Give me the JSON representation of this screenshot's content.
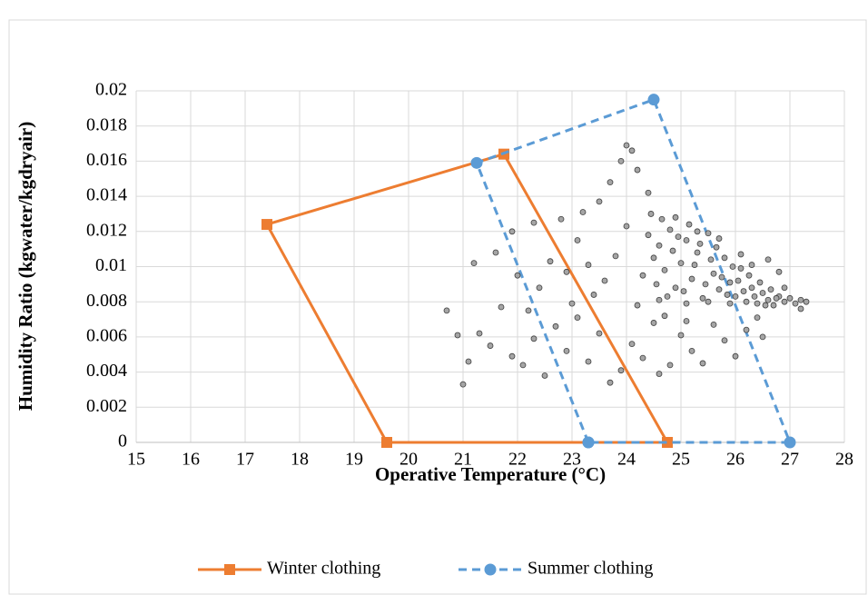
{
  "chart_data": {
    "type": "scatter",
    "xlabel": "Operative Temperature (°C)",
    "ylabel": "Humidity Ratio (kgwater/kgdryair)",
    "xlim": [
      15,
      28
    ],
    "xticks": [
      15,
      16,
      17,
      18,
      19,
      20,
      21,
      22,
      23,
      24,
      25,
      26,
      27,
      28
    ],
    "ylim": [
      0,
      0.02
    ],
    "yticks": [
      0,
      0.002,
      0.004,
      0.006,
      0.008,
      0.01,
      0.012,
      0.014,
      0.016,
      0.018,
      0.02
    ],
    "grid": true,
    "legend": "bottom",
    "series": [
      {
        "name": "Winter clothing",
        "color": "#ed7d31",
        "marker": "square",
        "dashed": false,
        "x": [
          19.6,
          17.4,
          21.75,
          24.75,
          19.6
        ],
        "y": [
          0,
          0.0124,
          0.0164,
          0,
          0
        ]
      },
      {
        "name": "Summer clothing",
        "color": "#5b9bd5",
        "marker": "circle",
        "dashed": true,
        "x": [
          23.3,
          21.25,
          24.5,
          27.0,
          23.3
        ],
        "y": [
          0,
          0.0159,
          0.0195,
          0,
          0
        ]
      },
      {
        "color": "#a5a5a5",
        "marker": "dot",
        "x": [
          24.5,
          24.6,
          24.7,
          24.8,
          24.9,
          25.0,
          25.1,
          25.2,
          25.3,
          25.4,
          25.5,
          25.6,
          25.7,
          25.8,
          25.9,
          26.0,
          26.1,
          26.2,
          26.3,
          26.4,
          26.5,
          26.6,
          26.7,
          26.8,
          26.9,
          27.0,
          27.1,
          27.2,
          27.3,
          24.4,
          24.55,
          24.65,
          24.75,
          24.85,
          24.95,
          25.05,
          25.15,
          25.25,
          25.35,
          25.45,
          25.55,
          25.65,
          25.75,
          25.85,
          25.95,
          26.05,
          26.15,
          26.25,
          26.35,
          26.45,
          26.55,
          26.65,
          26.75,
          24.3,
          24.45,
          24.6,
          24.9,
          25.1,
          25.3,
          25.5,
          25.7,
          25.9,
          26.1,
          26.3,
          26.6,
          26.9,
          27.2,
          24.0,
          24.1,
          23.9,
          24.2,
          23.7,
          24.4,
          23.5,
          23.2,
          22.8,
          22.3,
          21.9,
          21.6,
          21.2,
          20.9,
          20.7,
          21.1,
          21.0,
          21.3,
          21.5,
          21.7,
          21.9,
          22.1,
          22.3,
          22.5,
          22.7,
          22.9,
          23.1,
          23.3,
          23.5,
          23.7,
          23.9,
          24.1,
          24.3,
          24.6,
          24.8,
          25.0,
          25.2,
          25.4,
          25.6,
          25.8,
          26.0,
          26.2,
          26.4,
          22.0,
          22.4,
          22.6,
          22.9,
          23.1,
          23.4,
          23.6,
          23.8,
          24.0,
          24.2,
          23.0,
          23.3,
          22.2,
          24.5,
          24.7,
          25.1,
          26.5,
          26.8
        ],
        "y": [
          0.0105,
          0.0112,
          0.0098,
          0.0121,
          0.0088,
          0.0102,
          0.0115,
          0.0093,
          0.0108,
          0.0082,
          0.0119,
          0.0096,
          0.0087,
          0.0105,
          0.0091,
          0.0083,
          0.0099,
          0.008,
          0.0088,
          0.0079,
          0.0085,
          0.0081,
          0.0078,
          0.0083,
          0.008,
          0.0082,
          0.0079,
          0.0081,
          0.008,
          0.0118,
          0.009,
          0.0127,
          0.0083,
          0.0109,
          0.0117,
          0.0086,
          0.0124,
          0.0101,
          0.0113,
          0.009,
          0.0104,
          0.0111,
          0.0094,
          0.0084,
          0.01,
          0.0092,
          0.0086,
          0.0095,
          0.0083,
          0.0091,
          0.0078,
          0.0087,
          0.0082,
          0.0095,
          0.013,
          0.0081,
          0.0128,
          0.0079,
          0.012,
          0.008,
          0.0116,
          0.0079,
          0.0107,
          0.0101,
          0.0104,
          0.0088,
          0.0076,
          0.0169,
          0.0166,
          0.016,
          0.0155,
          0.0148,
          0.0142,
          0.0137,
          0.0131,
          0.0127,
          0.0125,
          0.012,
          0.0108,
          0.0102,
          0.0061,
          0.0075,
          0.0046,
          0.0033,
          0.0062,
          0.0055,
          0.0077,
          0.0049,
          0.0044,
          0.0059,
          0.0038,
          0.0066,
          0.0052,
          0.0071,
          0.0046,
          0.0062,
          0.0034,
          0.0041,
          0.0056,
          0.0048,
          0.0039,
          0.0044,
          0.0061,
          0.0052,
          0.0045,
          0.0067,
          0.0058,
          0.0049,
          0.0064,
          0.0071,
          0.0095,
          0.0088,
          0.0103,
          0.0097,
          0.0115,
          0.0084,
          0.0092,
          0.0106,
          0.0123,
          0.0078,
          0.0079,
          0.0101,
          0.0075,
          0.0068,
          0.0072,
          0.0069,
          0.006,
          0.0097
        ]
      }
    ]
  }
}
